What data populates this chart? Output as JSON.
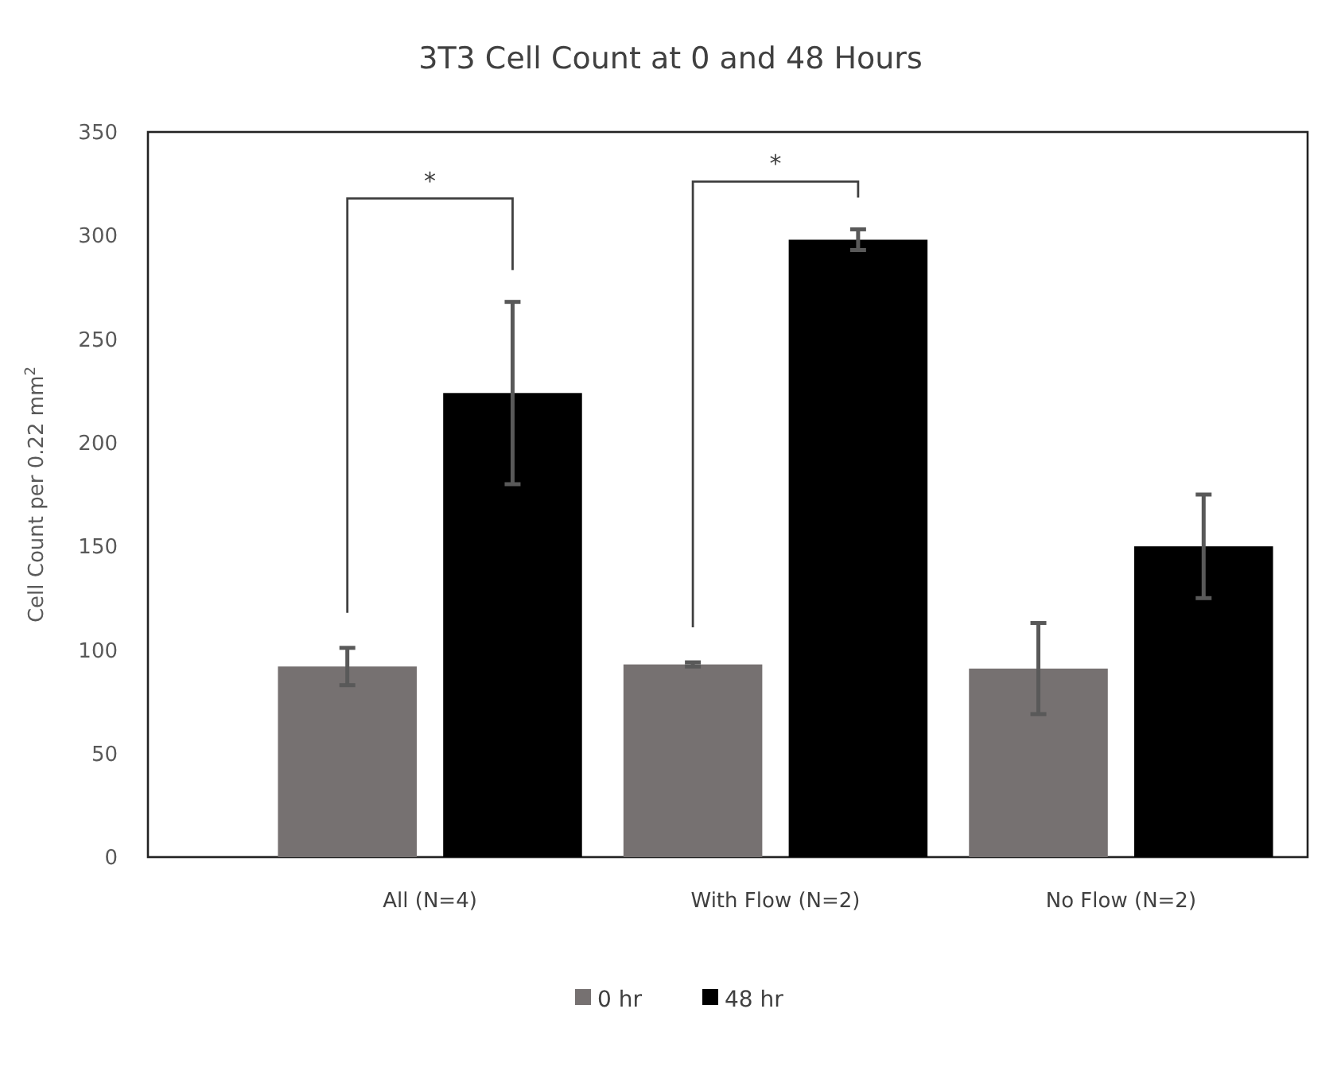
{
  "chart_data": {
    "type": "bar",
    "title": "3T3 Cell Count at 0 and 48 Hours",
    "ylabel": "Cell Count per 0.22 mm$^{2}$",
    "categories": [
      "All (N=4)",
      "With Flow (N=2)",
      "No Flow (N=2)"
    ],
    "series": [
      {
        "name": "0 hr",
        "color": "#767171",
        "values": [
          92,
          93,
          91
        ],
        "errors": [
          9,
          1,
          22
        ]
      },
      {
        "name": "48 hr",
        "color": "#000000",
        "values": [
          224,
          298,
          150
        ],
        "errors": [
          44,
          5,
          25
        ]
      }
    ],
    "ylim": [
      0,
      350
    ],
    "yticks": [
      0,
      50,
      100,
      150,
      200,
      250,
      300,
      350
    ],
    "grid": false,
    "legend": "bottom",
    "annotations": [
      "*",
      "*"
    ]
  }
}
